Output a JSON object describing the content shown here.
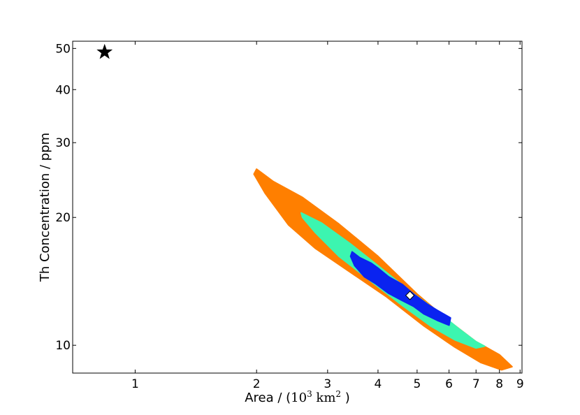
{
  "chart_data": {
    "type": "contour",
    "xlabel": {
      "prefix": "Area / (",
      "math_base": "10",
      "math_exp": "3",
      "unit_base": " km",
      "unit_exp": "2",
      "suffix": " )"
    },
    "ylabel": "Th Concentration / ppm",
    "x_scale": "log",
    "y_scale": "log",
    "xlim": [
      0.7,
      9.1
    ],
    "ylim": [
      8.6,
      52
    ],
    "x_ticks": [
      1,
      2,
      3,
      4,
      5,
      6,
      7,
      8,
      9
    ],
    "x_tick_labels": [
      "1",
      "2",
      "3",
      "4",
      "5",
      "6",
      "7",
      "8",
      "9"
    ],
    "y_ticks": [
      10,
      20,
      30,
      40,
      50
    ],
    "y_tick_labels": [
      "10",
      "20",
      "30",
      "40",
      "50"
    ],
    "grid": false,
    "contours": [
      {
        "level": "outer",
        "color": "#ff7f00",
        "points": [
          [
            2.0,
            26.0
          ],
          [
            2.2,
            24.3
          ],
          [
            2.6,
            22.3
          ],
          [
            3.2,
            19.3
          ],
          [
            4.0,
            16.2
          ],
          [
            5.0,
            13.2
          ],
          [
            6.0,
            11.4
          ],
          [
            7.0,
            10.2
          ],
          [
            8.0,
            9.5
          ],
          [
            8.6,
            8.9
          ],
          [
            8.1,
            8.75
          ],
          [
            7.2,
            9.1
          ],
          [
            6.2,
            9.9
          ],
          [
            5.2,
            11.1
          ],
          [
            4.2,
            13.0
          ],
          [
            3.4,
            14.9
          ],
          [
            2.8,
            16.9
          ],
          [
            2.4,
            19.2
          ],
          [
            2.1,
            22.8
          ],
          [
            1.97,
            25.3
          ]
        ]
      },
      {
        "level": "middle",
        "color": "#3cf5b0",
        "points": [
          [
            2.58,
            20.5
          ],
          [
            2.9,
            19.4
          ],
          [
            3.4,
            17.4
          ],
          [
            4.0,
            15.4
          ],
          [
            4.8,
            13.4
          ],
          [
            5.5,
            12.2
          ],
          [
            6.3,
            11.0
          ],
          [
            7.0,
            10.2
          ],
          [
            7.35,
            9.95
          ],
          [
            7.0,
            9.85
          ],
          [
            6.2,
            10.3
          ],
          [
            5.4,
            11.1
          ],
          [
            4.6,
            12.4
          ],
          [
            3.9,
            14.0
          ],
          [
            3.2,
            16.2
          ],
          [
            2.8,
            18.4
          ],
          [
            2.6,
            20.0
          ]
        ]
      },
      {
        "level": "inner",
        "color": "#0a23f0",
        "points": [
          [
            3.45,
            16.6
          ],
          [
            3.6,
            16.1
          ],
          [
            3.85,
            15.6
          ],
          [
            4.0,
            15.2
          ],
          [
            4.25,
            14.5
          ],
          [
            4.6,
            13.9
          ],
          [
            4.9,
            13.2
          ],
          [
            5.3,
            12.5
          ],
          [
            5.6,
            12.1
          ],
          [
            6.05,
            11.6
          ],
          [
            6.0,
            11.15
          ],
          [
            5.6,
            11.45
          ],
          [
            5.2,
            11.85
          ],
          [
            4.9,
            12.35
          ],
          [
            4.55,
            12.8
          ],
          [
            4.25,
            13.25
          ],
          [
            3.95,
            13.95
          ],
          [
            3.7,
            14.5
          ],
          [
            3.5,
            15.4
          ],
          [
            3.42,
            16.2
          ]
        ]
      }
    ],
    "markers": [
      {
        "name": "star",
        "symbol": "star",
        "x": 0.84,
        "y": 49,
        "color": "#000000"
      },
      {
        "name": "best-fit",
        "symbol": "diamond",
        "x": 4.8,
        "y": 13.1,
        "color": "#ffffff"
      }
    ]
  }
}
